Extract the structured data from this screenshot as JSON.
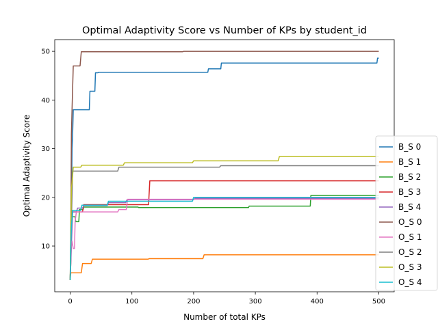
{
  "chart_data": {
    "type": "line",
    "title": "Optimal Adaptivity Score vs Number of KPs by student_id",
    "xlabel": "Number of total KPs",
    "ylabel": "Optimal Adaptivity Score",
    "xlim": [
      -25,
      525
    ],
    "ylim": [
      0.6,
      52.4
    ],
    "xticks": [
      0,
      100,
      200,
      300,
      400,
      500
    ],
    "yticks": [
      10,
      20,
      30,
      40,
      50
    ],
    "grid": false,
    "legend_position": "right",
    "series": [
      {
        "name": "B_S 0",
        "color": "#1f77b4",
        "points": [
          [
            0,
            3
          ],
          [
            1,
            9
          ],
          [
            2,
            17
          ],
          [
            3,
            30
          ],
          [
            4,
            33
          ],
          [
            5,
            38
          ],
          [
            31,
            38
          ],
          [
            32,
            41.8
          ],
          [
            40,
            41.8
          ],
          [
            41,
            45.6
          ],
          [
            45,
            45.6
          ],
          [
            46,
            45.7
          ],
          [
            223,
            45.7
          ],
          [
            224,
            46.4
          ],
          [
            244,
            46.4
          ],
          [
            245,
            47.6
          ],
          [
            497,
            47.6
          ],
          [
            498,
            48.6
          ],
          [
            500,
            48.6
          ]
        ]
      },
      {
        "name": "B_S 1",
        "color": "#ff7f0e",
        "points": [
          [
            0,
            3
          ],
          [
            1,
            4.5
          ],
          [
            18,
            4.5
          ],
          [
            20,
            6.4
          ],
          [
            34,
            6.4
          ],
          [
            36,
            7.3
          ],
          [
            126,
            7.3
          ],
          [
            128,
            7.4
          ],
          [
            215,
            7.4
          ],
          [
            217,
            8.2
          ],
          [
            500,
            8.2
          ]
        ]
      },
      {
        "name": "B_S 2",
        "color": "#2ca02c",
        "points": [
          [
            0,
            3
          ],
          [
            1,
            9
          ],
          [
            2,
            16
          ],
          [
            8,
            16
          ],
          [
            9,
            15
          ],
          [
            14,
            15
          ],
          [
            15,
            17.5
          ],
          [
            21,
            17.5
          ],
          [
            22,
            18
          ],
          [
            110,
            18
          ],
          [
            111,
            17.9
          ],
          [
            289,
            17.9
          ],
          [
            290,
            18.2
          ],
          [
            389,
            18.2
          ],
          [
            390,
            20.4
          ],
          [
            500,
            20.4
          ]
        ]
      },
      {
        "name": "B_S 3",
        "color": "#d62728",
        "points": [
          [
            0,
            3
          ],
          [
            1,
            6.5
          ],
          [
            2,
            15
          ],
          [
            3,
            16.5
          ],
          [
            4,
            17
          ],
          [
            20,
            17
          ],
          [
            22,
            18.5
          ],
          [
            127,
            18.5
          ],
          [
            129,
            23.4
          ],
          [
            500,
            23.4
          ]
        ]
      },
      {
        "name": "B_S 4",
        "color": "#9467bd",
        "points": [
          [
            0,
            3
          ],
          [
            2,
            10
          ],
          [
            4,
            17
          ],
          [
            10,
            17
          ],
          [
            12,
            17.8
          ],
          [
            20,
            17.8
          ],
          [
            22,
            18.3
          ],
          [
            60,
            18.3
          ],
          [
            62,
            18.9
          ],
          [
            90,
            18.9
          ],
          [
            92,
            19.5
          ],
          [
            200,
            19.5
          ],
          [
            202,
            19.8
          ],
          [
            500,
            19.8
          ]
        ]
      },
      {
        "name": "O_S 0",
        "color": "#8c564b",
        "points": [
          [
            0,
            3
          ],
          [
            1,
            14
          ],
          [
            2,
            33
          ],
          [
            3,
            38
          ],
          [
            5,
            47
          ],
          [
            16,
            47
          ],
          [
            18,
            49.9
          ],
          [
            182,
            49.9
          ],
          [
            184,
            50
          ],
          [
            500,
            50
          ]
        ]
      },
      {
        "name": "O_S 1",
        "color": "#e377c2",
        "points": [
          [
            0,
            3
          ],
          [
            1,
            9
          ],
          [
            3,
            11
          ],
          [
            5,
            9.5
          ],
          [
            7,
            9.5
          ],
          [
            8,
            15
          ],
          [
            10,
            17
          ],
          [
            77,
            17
          ],
          [
            79,
            17.5
          ],
          [
            91,
            17.5
          ],
          [
            93,
            19.6
          ],
          [
            500,
            19.6
          ]
        ]
      },
      {
        "name": "O_S 2",
        "color": "#7f7f7f",
        "points": [
          [
            0,
            3
          ],
          [
            2,
            15
          ],
          [
            4,
            25.4
          ],
          [
            77,
            25.4
          ],
          [
            79,
            26.2
          ],
          [
            242,
            26.2
          ],
          [
            244,
            26.5
          ],
          [
            500,
            26.5
          ]
        ]
      },
      {
        "name": "O_S 3",
        "color": "#bcbd22",
        "points": [
          [
            0,
            3
          ],
          [
            2,
            22
          ],
          [
            3,
            23
          ],
          [
            5,
            26.2
          ],
          [
            17,
            26.2
          ],
          [
            19,
            26.6
          ],
          [
            86,
            26.6
          ],
          [
            88,
            27.1
          ],
          [
            198,
            27.1
          ],
          [
            200,
            27.5
          ],
          [
            337,
            27.5
          ],
          [
            339,
            28.4
          ],
          [
            500,
            28.4
          ]
        ]
      },
      {
        "name": "O_S 4",
        "color": "#17becf",
        "points": [
          [
            0,
            3
          ],
          [
            1,
            10
          ],
          [
            2,
            14
          ],
          [
            4,
            17.3
          ],
          [
            17,
            17.3
          ],
          [
            19,
            18.4
          ],
          [
            60,
            18.4
          ],
          [
            62,
            19.2
          ],
          [
            198,
            19.2
          ],
          [
            200,
            20
          ],
          [
            500,
            20
          ]
        ]
      }
    ]
  }
}
